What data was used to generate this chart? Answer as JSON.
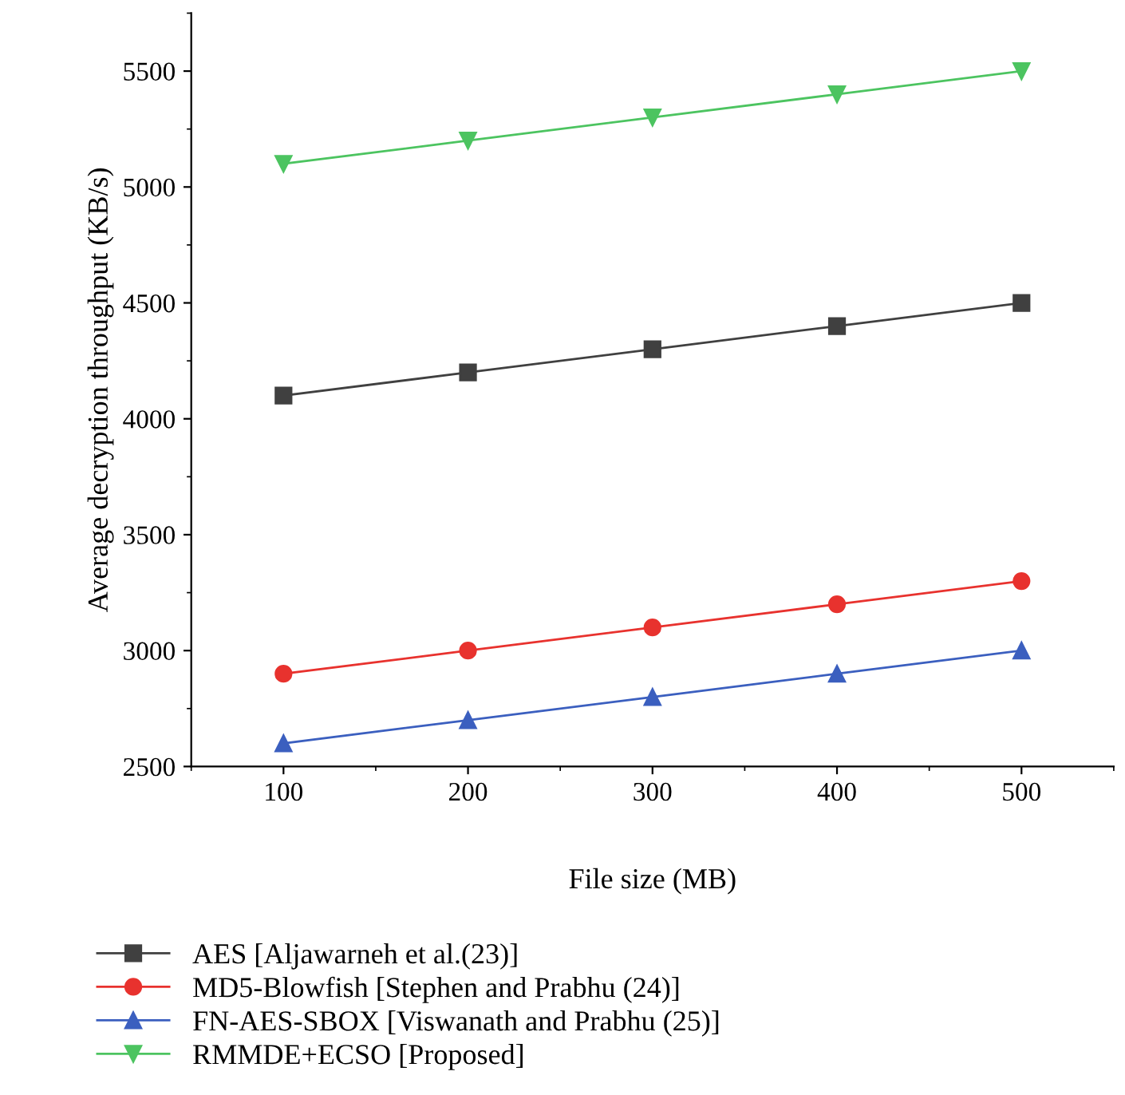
{
  "chart_data": {
    "type": "line",
    "xlabel": "File size (MB)",
    "ylabel": "Average decryption throughput (KB/s)",
    "x": [
      100,
      200,
      300,
      400,
      500
    ],
    "series": [
      {
        "name": "AES [Aljawarneh et al.(23)]",
        "color": "#404040",
        "marker": "square",
        "values": [
          4100,
          4200,
          4300,
          4400,
          4500
        ]
      },
      {
        "name": "MD5-Blowfish [Stephen and Prabhu (24)]",
        "color": "#e8322e",
        "marker": "circle",
        "values": [
          2900,
          3000,
          3100,
          3200,
          3300
        ]
      },
      {
        "name": "FN-AES-SBOX [Viswanath and Prabhu (25)]",
        "color": "#3b5fbf",
        "marker": "triangle",
        "values": [
          2600,
          2700,
          2800,
          2900,
          3000
        ]
      },
      {
        "name": "RMMDE+ECSO [Proposed]",
        "color": "#4cc460",
        "marker": "triangle_down",
        "values": [
          5100,
          5200,
          5300,
          5400,
          5500
        ]
      }
    ],
    "xlim": [
      50,
      550
    ],
    "ylim": [
      2500,
      5750
    ],
    "xticks": [
      100,
      200,
      300,
      400,
      500
    ],
    "yticks": [
      2500,
      3000,
      3500,
      4000,
      4500,
      5000,
      5500
    ],
    "grid": false,
    "legend": "bottom",
    "line_style": "solid"
  }
}
